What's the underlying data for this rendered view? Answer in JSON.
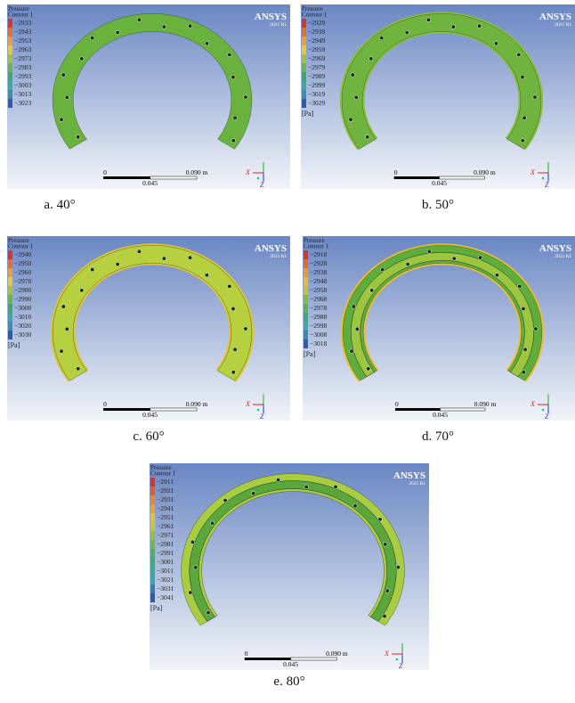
{
  "panels": [
    {
      "legend_title": "Pressure",
      "legend_subtitle": "Contour 1",
      "legend_values": [
        "−2933",
        "−2943",
        "−2953",
        "−2963",
        "−2973",
        "−2983",
        "−2993",
        "−3003",
        "−3013",
        "−3023"
      ],
      "logo": "ANSYS",
      "version": "2021 R1",
      "scale_labels": [
        "0",
        "0.045",
        "0.090 m"
      ],
      "axis_labels": [
        "X",
        "Z"
      ],
      "caption": "a. 40°"
    },
    {
      "legend_title": "Pressure",
      "legend_subtitle": "Contour 1",
      "legend_values": [
        "−2929",
        "−2939",
        "−2949",
        "−2959",
        "−2969",
        "−2979",
        "−2989",
        "−2999",
        "−3019",
        "−3029"
      ],
      "unit": "[Pa]",
      "logo": "ANSYS",
      "version": "2021 R1",
      "scale_labels": [
        "0",
        "0.045",
        "0.090 m"
      ],
      "axis_labels": [
        "X",
        "Z"
      ],
      "caption": "b. 50°"
    },
    {
      "legend_title": "Pressure",
      "legend_subtitle": "Contour 1",
      "legend_values": [
        "−2940",
        "−2950",
        "−2960",
        "−2970",
        "−2980",
        "−2990",
        "−3000",
        "−3010",
        "−3020",
        "−3030"
      ],
      "unit": "[Pa]",
      "logo": "ANSYS",
      "version": "2021 R1",
      "scale_labels": [
        "0",
        "0.045",
        "0.090 m"
      ],
      "axis_labels": [
        "X",
        "Z"
      ],
      "caption": "c. 60°"
    },
    {
      "legend_title": "Pressure",
      "legend_subtitle": "Contour 1",
      "legend_values": [
        "−2918",
        "−2928",
        "−2938",
        "−2948",
        "−2958",
        "−2968",
        "−2978",
        "−2988",
        "−2998",
        "−3008",
        "−3018"
      ],
      "unit": "[Pa]",
      "logo": "ANSYS",
      "version": "2021 R1",
      "scale_labels": [
        "0",
        "0.045",
        "0.090 m"
      ],
      "axis_labels": [
        "X",
        "Z"
      ],
      "caption": "d. 70°"
    },
    {
      "legend_title": "Pressure",
      "legend_subtitle": "Contour 1",
      "legend_values": [
        "−2911",
        "−2921",
        "−2931",
        "−2941",
        "−2951",
        "−2961",
        "−2971",
        "−2981",
        "−2991",
        "−3001",
        "−3011",
        "−3021",
        "−3031",
        "−3041"
      ],
      "unit": "[Pa]",
      "logo": "ANSYS",
      "version": "2021 R1",
      "scale_labels": [
        "0",
        "0.045",
        "0.090 m"
      ],
      "axis_labels": [
        "X",
        "Z"
      ],
      "caption": "e. 80°"
    }
  ]
}
